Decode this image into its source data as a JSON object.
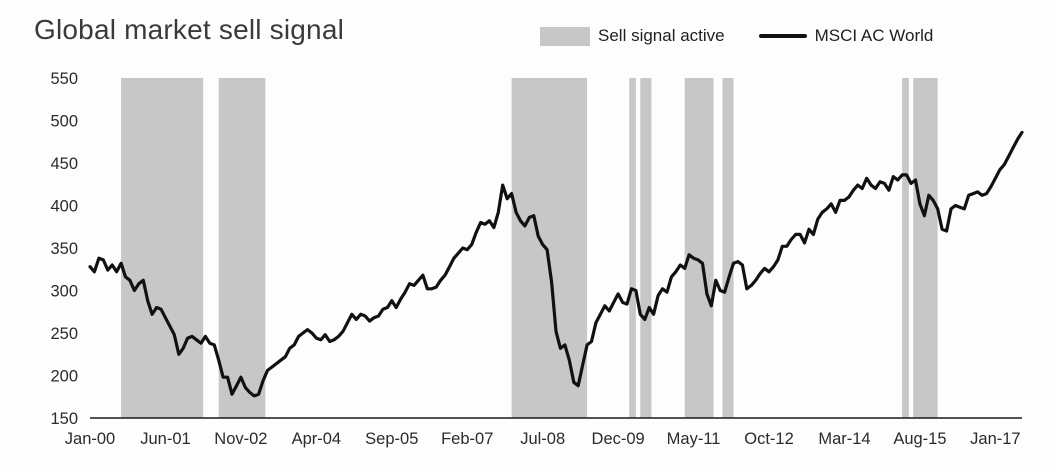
{
  "title": "Global market sell signal",
  "legend": {
    "band_label": "Sell signal active",
    "line_label": "MSCI AC World"
  },
  "colors": {
    "band": "#c7c7c7",
    "line": "#111111",
    "axis": "#1a1a1a",
    "text": "#2b2b2b",
    "title_text": "#3a3a3a",
    "background": "#fdfdfd"
  },
  "chart_data": {
    "type": "line",
    "title": "Global market sell signal",
    "xlabel": "",
    "ylabel": "",
    "ylim": [
      150,
      550
    ],
    "yticks": [
      150,
      200,
      250,
      300,
      350,
      400,
      450,
      500,
      550
    ],
    "grid": false,
    "legend_position": "top-right",
    "x_unit": "months since Jan-00",
    "x_range_months": [
      0,
      210
    ],
    "xtick_months": [
      0,
      17,
      34,
      51,
      68,
      85,
      102,
      119,
      136,
      153,
      170,
      187,
      204
    ],
    "xtick_labels": [
      "Jan-00",
      "Jun-01",
      "Nov-02",
      "Apr-04",
      "Sep-05",
      "Feb-07",
      "Jul-08",
      "Dec-09",
      "May-11",
      "Oct-12",
      "Mar-14",
      "Aug-15",
      "Jan-17"
    ],
    "sell_signal_bands": [
      {
        "from": "Aug-00",
        "to": "Feb-02",
        "start_month": 7,
        "end_month": 25.5
      },
      {
        "from": "Jun-02",
        "to": "Apr-03",
        "start_month": 29,
        "end_month": 39.5
      },
      {
        "from": "Dec-07",
        "to": "May-09",
        "start_month": 95,
        "end_month": 112
      },
      {
        "from": "Feb-10",
        "to": "Apr-10",
        "start_month": 121.5,
        "end_month": 123
      },
      {
        "from": "May-10",
        "to": "Jul-10",
        "start_month": 124,
        "end_month": 126.5
      },
      {
        "from": "Mar-11",
        "to": "Sep-11",
        "start_month": 134,
        "end_month": 140.5
      },
      {
        "from": "Nov-11",
        "to": "Jan-12",
        "start_month": 142.5,
        "end_month": 145
      },
      {
        "from": "Mar-15",
        "to": "Apr-15",
        "start_month": 183,
        "end_month": 184.5
      },
      {
        "from": "Jun-15",
        "to": "Nov-15",
        "start_month": 185.5,
        "end_month": 191
      }
    ],
    "series": [
      {
        "name": "MSCI AC World",
        "start": "Jan-00",
        "interval": "monthly",
        "values": [
          328,
          322,
          338,
          336,
          324,
          330,
          322,
          332,
          316,
          312,
          300,
          308,
          312,
          288,
          272,
          280,
          278,
          268,
          258,
          248,
          225,
          232,
          244,
          246,
          242,
          238,
          246,
          238,
          236,
          218,
          198,
          198,
          178,
          188,
          198,
          186,
          180,
          176,
          178,
          194,
          206,
          210,
          214,
          218,
          222,
          232,
          236,
          246,
          250,
          254,
          250,
          244,
          242,
          248,
          240,
          242,
          246,
          252,
          262,
          272,
          266,
          272,
          270,
          264,
          268,
          270,
          278,
          280,
          288,
          280,
          290,
          298,
          308,
          306,
          312,
          318,
          302,
          302,
          304,
          312,
          318,
          328,
          338,
          344,
          350,
          348,
          354,
          368,
          380,
          378,
          382,
          374,
          392,
          424,
          408,
          414,
          392,
          382,
          376,
          386,
          388,
          364,
          354,
          348,
          310,
          252,
          232,
          236,
          218,
          192,
          188,
          212,
          236,
          240,
          262,
          272,
          282,
          276,
          286,
          296,
          286,
          284,
          302,
          300,
          272,
          266,
          280,
          272,
          294,
          302,
          298,
          316,
          322,
          330,
          326,
          342,
          338,
          336,
          332,
          296,
          282,
          312,
          300,
          298,
          316,
          332,
          334,
          330,
          302,
          306,
          312,
          320,
          326,
          322,
          328,
          336,
          352,
          352,
          360,
          366,
          366,
          356,
          372,
          366,
          384,
          392,
          396,
          402,
          392,
          406,
          406,
          410,
          418,
          424,
          420,
          432,
          424,
          420,
          428,
          426,
          418,
          434,
          430,
          436,
          436,
          426,
          430,
          402,
          388,
          412,
          406,
          396,
          372,
          370,
          396,
          400,
          398,
          396,
          412,
          414,
          416,
          412,
          414,
          422,
          432,
          442,
          448,
          458,
          468,
          478,
          486
        ]
      }
    ]
  }
}
